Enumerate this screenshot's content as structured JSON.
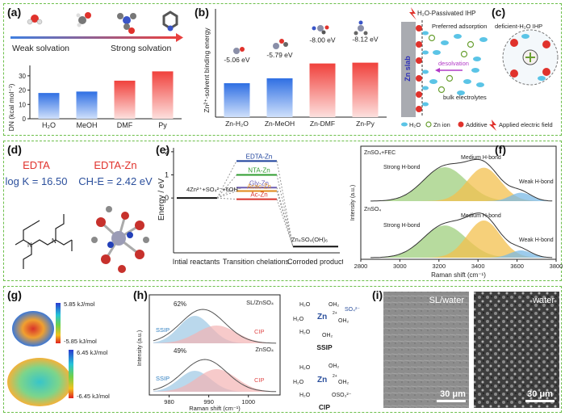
{
  "a": {
    "label": "(a)",
    "weak": "Weak solvation",
    "strong": "Strong solvation",
    "ylabel": "DN (kcal mol⁻¹)",
    "ticks": [
      "0",
      "10",
      "20",
      "30"
    ],
    "chart_data": {
      "type": "bar",
      "categories": [
        "H₂O",
        "MeOH",
        "DMF",
        "Py"
      ],
      "values": [
        18,
        19,
        26.6,
        33.1
      ],
      "ylim": [
        0,
        35
      ],
      "ylabel": "DN (kcal mol⁻¹)"
    }
  },
  "b": {
    "label": "(b)",
    "ylabel": "Zn²⁺-solvent binding energy",
    "chart_data": {
      "type": "bar",
      "categories": [
        "Zn-H₂O",
        "Zn-MeOH",
        "Zn-DMF",
        "Zn-Py"
      ],
      "values": [
        -5.06,
        -5.79,
        -8.0,
        -8.12
      ],
      "data_labels": [
        "-5.06 eV",
        "-5.79 eV",
        "-8.00 eV",
        "-8.12 eV"
      ],
      "ylabel": "Zn²⁺-solvent binding energy"
    }
  },
  "c": {
    "label": "(c)",
    "title": "H₂O-Passivated IHP",
    "slab": "Zn slab",
    "preferred": "Preferred adsorption",
    "desolvation": "desolvation",
    "bulk": "bulk electrolytes",
    "deficient": "deficient-H₂O IHP",
    "legend": [
      "H₂O",
      "Zn ion",
      "Additive",
      "Applied electric field"
    ]
  },
  "d": {
    "label": "(d)",
    "edta": "EDTA",
    "logk": "log K = 16.50",
    "edtazn": "EDTA-Zn",
    "che": "CH-E = 2.42 eV"
  },
  "e": {
    "label": "(e)",
    "ylabel": "Energy / eV",
    "ticks": [
      "0",
      "1",
      "2"
    ],
    "reactants": "4Zn²⁺+SO₄²⁻+6OH⁻",
    "product": "Zn₄SO₄(OH)₆",
    "xcats": [
      "Intial reactants",
      "Transition chelations",
      "Corroded product"
    ],
    "chart_data": {
      "type": "line",
      "series": [
        {
          "name": "EDTA-Zn",
          "values": [
            0,
            1.6,
            -2.1
          ]
        },
        {
          "name": "NTA-Zn",
          "values": [
            0,
            1.0,
            -2.1
          ]
        },
        {
          "name": "Gly-Zn",
          "values": [
            0,
            0.45,
            -2.1
          ]
        },
        {
          "name": "Acac-Zn",
          "values": [
            0,
            0.3,
            -2.1
          ]
        },
        {
          "name": "Ac-Zn",
          "values": [
            0,
            -0.05,
            -2.1
          ]
        }
      ],
      "ylim": [
        -2.3,
        2.1
      ],
      "colors": [
        "#1a3f9a",
        "#2f9c2f",
        "#6d5fb3",
        "#e08a1a",
        "#d8332c"
      ]
    }
  },
  "f": {
    "label": "(f)",
    "top_title": "ZnSO₄+FEC",
    "bot_title": "ZnSO₄",
    "strong": "Strong H-bond",
    "medium": "Medium H-bond",
    "weak": "Weak H-bond",
    "xlabel": "Raman shift (cm⁻¹)",
    "ylabel": "Intensity (a.u.)",
    "xticks": [
      "2800",
      "3000",
      "3200",
      "3400",
      "3600",
      "3800"
    ]
  },
  "g": {
    "label": "(g)",
    "top_max": "5.85 kJ/mol",
    "top_min": "-5.85 kJ/mol",
    "bot_max": "6.45 kJ/mol",
    "bot_min": "-6.45 kJ/mol"
  },
  "h": {
    "label": "(h)",
    "top_title": "SL/ZnSO₄",
    "bot_title": "ZnSO₄",
    "top_pct": "62%",
    "bot_pct": "49%",
    "ssip": "SSIP",
    "cip": "CIP",
    "xlabel": "Raman shift (cm⁻¹)",
    "ylabel": "Intensity (a.u.)",
    "xticks": [
      "980",
      "990",
      "1000"
    ],
    "ssip_caption": "SSIP",
    "cip_caption": "CIP"
  },
  "i": {
    "label": "(i)",
    "left_title": "SL/water",
    "right_title": "water",
    "scale": "30 μm"
  }
}
